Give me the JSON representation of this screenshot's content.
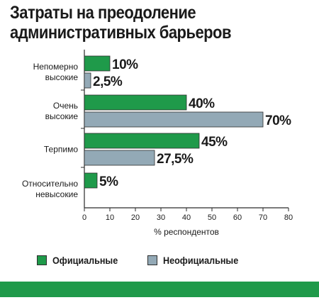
{
  "chart_data": {
    "type": "bar",
    "orientation": "horizontal",
    "title_lines": [
      "Затраты на преодоление",
      "административных барьеров"
    ],
    "categories": [
      [
        "Непомерно",
        "высокие"
      ],
      [
        "Очень",
        "высокие"
      ],
      [
        "Терпимо"
      ],
      [
        "Относительно",
        "невысокие"
      ]
    ],
    "series": [
      {
        "name": "Официальные",
        "values": [
          10,
          40,
          45,
          5
        ],
        "labels": [
          "10%",
          "40%",
          "45%",
          "5%"
        ],
        "color": "#1f9a4a"
      },
      {
        "name": "Неофициальные",
        "values": [
          2.5,
          70,
          27.5,
          null
        ],
        "labels": [
          "2,5%",
          "70%",
          "27,5%",
          ""
        ],
        "color": "#93a9b6"
      }
    ],
    "xlabel": "% респондентов",
    "xlim": [
      0,
      80
    ],
    "xticks": [
      0,
      10,
      20,
      30,
      40,
      50,
      60,
      70,
      80
    ],
    "gridlines": false,
    "legend_position": "bottom"
  },
  "colors": {
    "official": "#1f9a4a",
    "unofficial": "#93a9b6",
    "band": "#1f9a4a",
    "axis": "#2a2a2a"
  }
}
